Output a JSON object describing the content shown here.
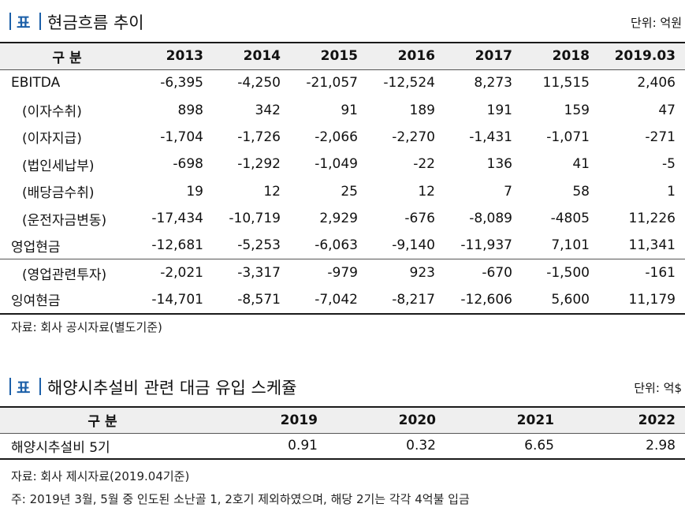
{
  "table1": {
    "tag": "표",
    "title": "현금흐름 추이",
    "unit": "단위: 억원",
    "header_label": "구 분",
    "columns": [
      "2013",
      "2014",
      "2015",
      "2016",
      "2017",
      "2018",
      "2019.03"
    ],
    "rows": [
      {
        "label": "EBITDA",
        "values": [
          "-6,395",
          "-4,250",
          "-21,057",
          "-12,524",
          "8,273",
          "11,515",
          "2,406"
        ]
      },
      {
        "label": "(이자수취)",
        "values": [
          "898",
          "342",
          "91",
          "189",
          "191",
          "159",
          "47"
        ]
      },
      {
        "label": "(이자지급)",
        "values": [
          "-1,704",
          "-1,726",
          "-2,066",
          "-2,270",
          "-1,431",
          "-1,071",
          "-271"
        ]
      },
      {
        "label": "(법인세납부)",
        "values": [
          "-698",
          "-1,292",
          "-1,049",
          "-22",
          "136",
          "41",
          "-5"
        ]
      },
      {
        "label": "(배당금수취)",
        "values": [
          "19",
          "12",
          "25",
          "12",
          "7",
          "58",
          "1"
        ]
      },
      {
        "label": "(운전자금변동)",
        "values": [
          "-17,434",
          "-10,719",
          "2,929",
          "-676",
          "-8,089",
          "-4805",
          "11,226"
        ]
      },
      {
        "label": "영업현금",
        "values": [
          "-12,681",
          "-5,253",
          "-6,063",
          "-9,140",
          "-11,937",
          "7,101",
          "11,341"
        ]
      },
      {
        "label": "(영업관련투자)",
        "values": [
          "-2,021",
          "-3,317",
          "-979",
          "923",
          "-670",
          "-1,500",
          "-161"
        ]
      },
      {
        "label": "잉여현금",
        "values": [
          "-14,701",
          "-8,571",
          "-7,042",
          "-8,217",
          "-12,606",
          "5,600",
          "11,179"
        ]
      }
    ],
    "source": "자료: 회사 공시자료(별도기준)"
  },
  "table2": {
    "tag": "표",
    "title": "해양시추설비 관련 대금 유입 스케쥴",
    "unit": "단위: 억$",
    "header_label": "구 분",
    "columns": [
      "2019",
      "2020",
      "2021",
      "2022"
    ],
    "rows": [
      {
        "label": "해양시추설비 5기",
        "values": [
          "0.91",
          "0.32",
          "6.65",
          "2.98"
        ]
      }
    ],
    "source": "자료: 회사 제시자료(2019.04기준)",
    "footnote": "주: 2019년 3월, 5월 중 인도된 소난골 1, 2호기 제외하였으며, 해당 2기는 각각 4억불 입금"
  }
}
